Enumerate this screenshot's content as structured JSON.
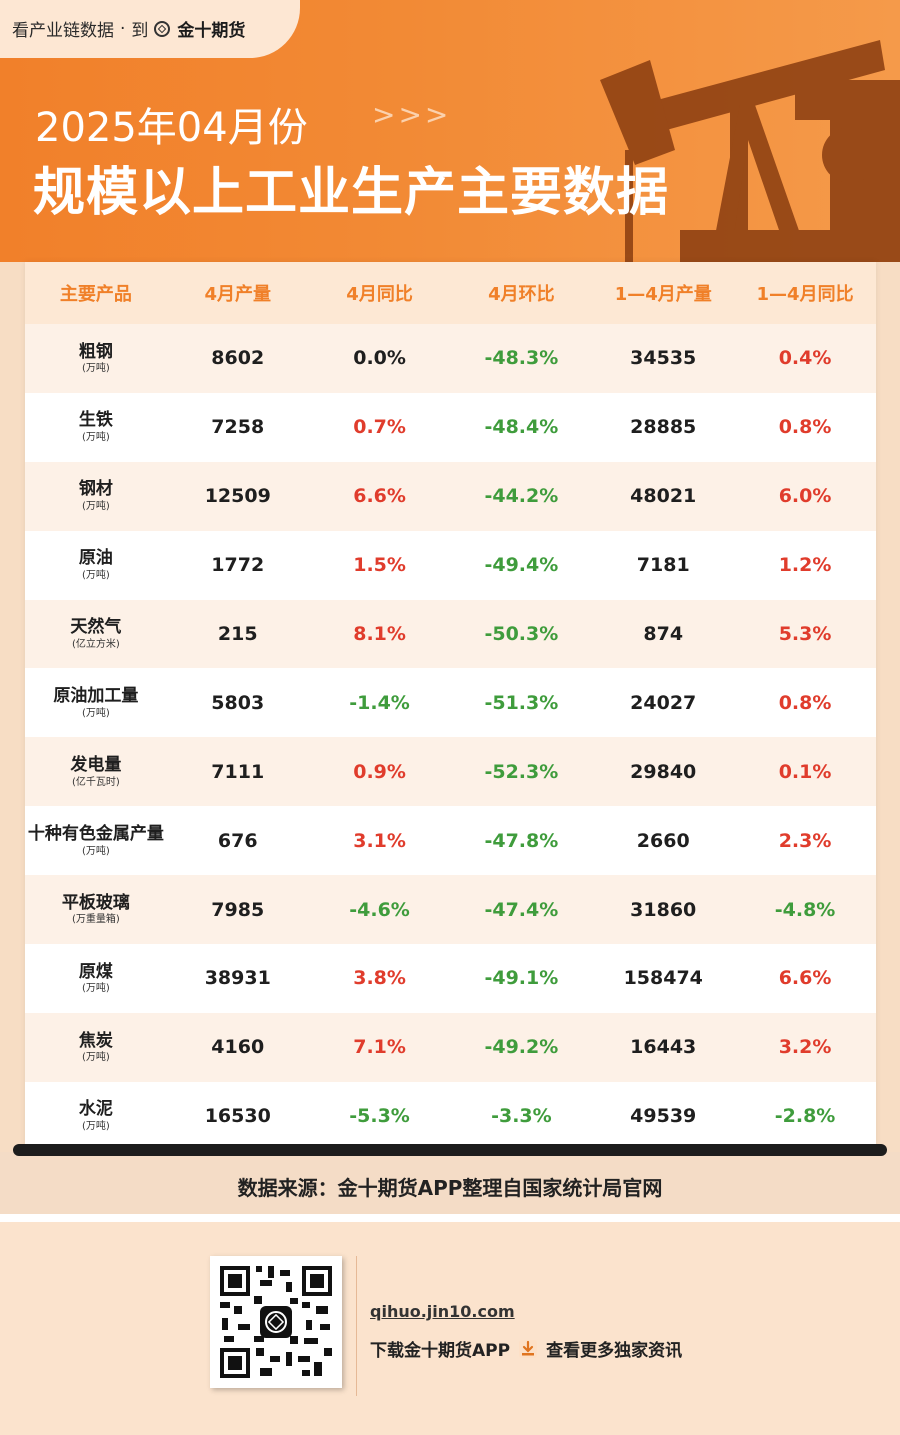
{
  "header": {
    "tagline": "看产业链数据",
    "separator": "·",
    "to_label": "到",
    "brand": "金十期货",
    "title_date": "2025年04月份",
    "arrows": ">>>",
    "title_main": "规模以上工业生产主要数据"
  },
  "table": {
    "columns": [
      "主要产品",
      "4月产量",
      "4月同比",
      "4月环比",
      "1—4月产量",
      "1—4月同比"
    ],
    "rows": [
      {
        "name": "粗钢",
        "unit": "(万吨)",
        "april_output": "8602",
        "april_yoy": "0.0%",
        "april_mom": "-48.3%",
        "ytd_output": "34535",
        "ytd_yoy": "0.4%"
      },
      {
        "name": "生铁",
        "unit": "(万吨)",
        "april_output": "7258",
        "april_yoy": "0.7%",
        "april_mom": "-48.4%",
        "ytd_output": "28885",
        "ytd_yoy": "0.8%"
      },
      {
        "name": "钢材",
        "unit": "(万吨)",
        "april_output": "12509",
        "april_yoy": "6.6%",
        "april_mom": "-44.2%",
        "ytd_output": "48021",
        "ytd_yoy": "6.0%"
      },
      {
        "name": "原油",
        "unit": "(万吨)",
        "april_output": "1772",
        "april_yoy": "1.5%",
        "april_mom": "-49.4%",
        "ytd_output": "7181",
        "ytd_yoy": "1.2%"
      },
      {
        "name": "天然气",
        "unit": "(亿立方米)",
        "april_output": "215",
        "april_yoy": "8.1%",
        "april_mom": "-50.3%",
        "ytd_output": "874",
        "ytd_yoy": "5.3%"
      },
      {
        "name": "原油加工量",
        "unit": "(万吨)",
        "april_output": "5803",
        "april_yoy": "-1.4%",
        "april_mom": "-51.3%",
        "ytd_output": "24027",
        "ytd_yoy": "0.8%"
      },
      {
        "name": "发电量",
        "unit": "(亿千瓦时)",
        "april_output": "7111",
        "april_yoy": "0.9%",
        "april_mom": "-52.3%",
        "ytd_output": "29840",
        "ytd_yoy": "0.1%"
      },
      {
        "name": "十种有色金属产量",
        "unit": "(万吨)",
        "april_output": "676",
        "april_yoy": "3.1%",
        "april_mom": "-47.8%",
        "ytd_output": "2660",
        "ytd_yoy": "2.3%"
      },
      {
        "name": "平板玻璃",
        "unit": "(万重量箱)",
        "april_output": "7985",
        "april_yoy": "-4.6%",
        "april_mom": "-47.4%",
        "ytd_output": "31860",
        "ytd_yoy": "-4.8%"
      },
      {
        "name": "原煤",
        "unit": "(万吨)",
        "april_output": "38931",
        "april_yoy": "3.8%",
        "april_mom": "-49.1%",
        "ytd_output": "158474",
        "ytd_yoy": "6.6%"
      },
      {
        "name": "焦炭",
        "unit": "(万吨)",
        "april_output": "4160",
        "april_yoy": "7.1%",
        "april_mom": "-49.2%",
        "ytd_output": "16443",
        "ytd_yoy": "3.2%"
      },
      {
        "name": "水泥",
        "unit": "(万吨)",
        "april_output": "16530",
        "april_yoy": "-5.3%",
        "april_mom": "-3.3%",
        "ytd_output": "49539",
        "ytd_yoy": "-2.8%"
      }
    ]
  },
  "source": "数据来源：金十期货APP整理自国家统计局官网",
  "footer": {
    "site": "qihuo.jin10.com",
    "download_label": "下载金十期货APP",
    "more_label": "查看更多独家资讯",
    "download_icon": "download-icon",
    "qr_icon": "qr-code-icon"
  },
  "colors": {
    "orange": "#f08029",
    "positive": "#e03c2c",
    "negative": "#3f9c3c"
  }
}
